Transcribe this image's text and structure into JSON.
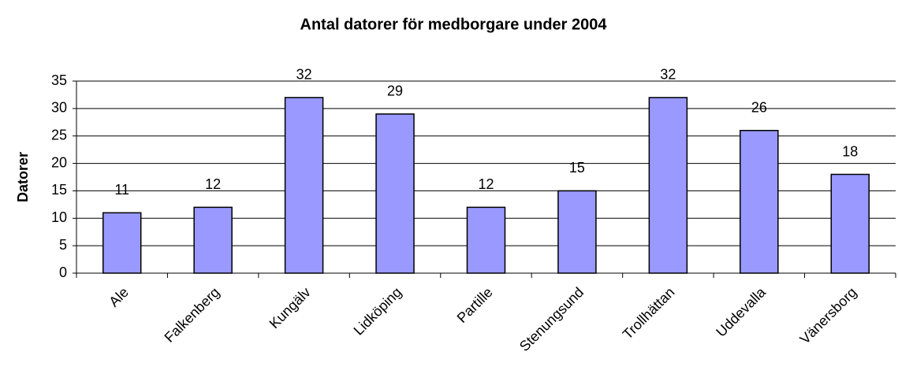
{
  "chart_data": {
    "type": "bar",
    "title": "Antal datorer för medborgare under 2004",
    "y_label": "Datorer",
    "categories": [
      "Ale",
      "Falkenberg",
      "Kungälv",
      "Lidköping",
      "Partille",
      "Stenungsund",
      "Trollhättan",
      "Uddevalla",
      "Vänersborg"
    ],
    "values": [
      11,
      12,
      32,
      29,
      12,
      15,
      32,
      26,
      18
    ],
    "color": "#9999ff",
    "ylim": [
      0,
      35
    ],
    "yticks": [
      0,
      5,
      10,
      15,
      20,
      25,
      30,
      35
    ],
    "grid": true
  }
}
